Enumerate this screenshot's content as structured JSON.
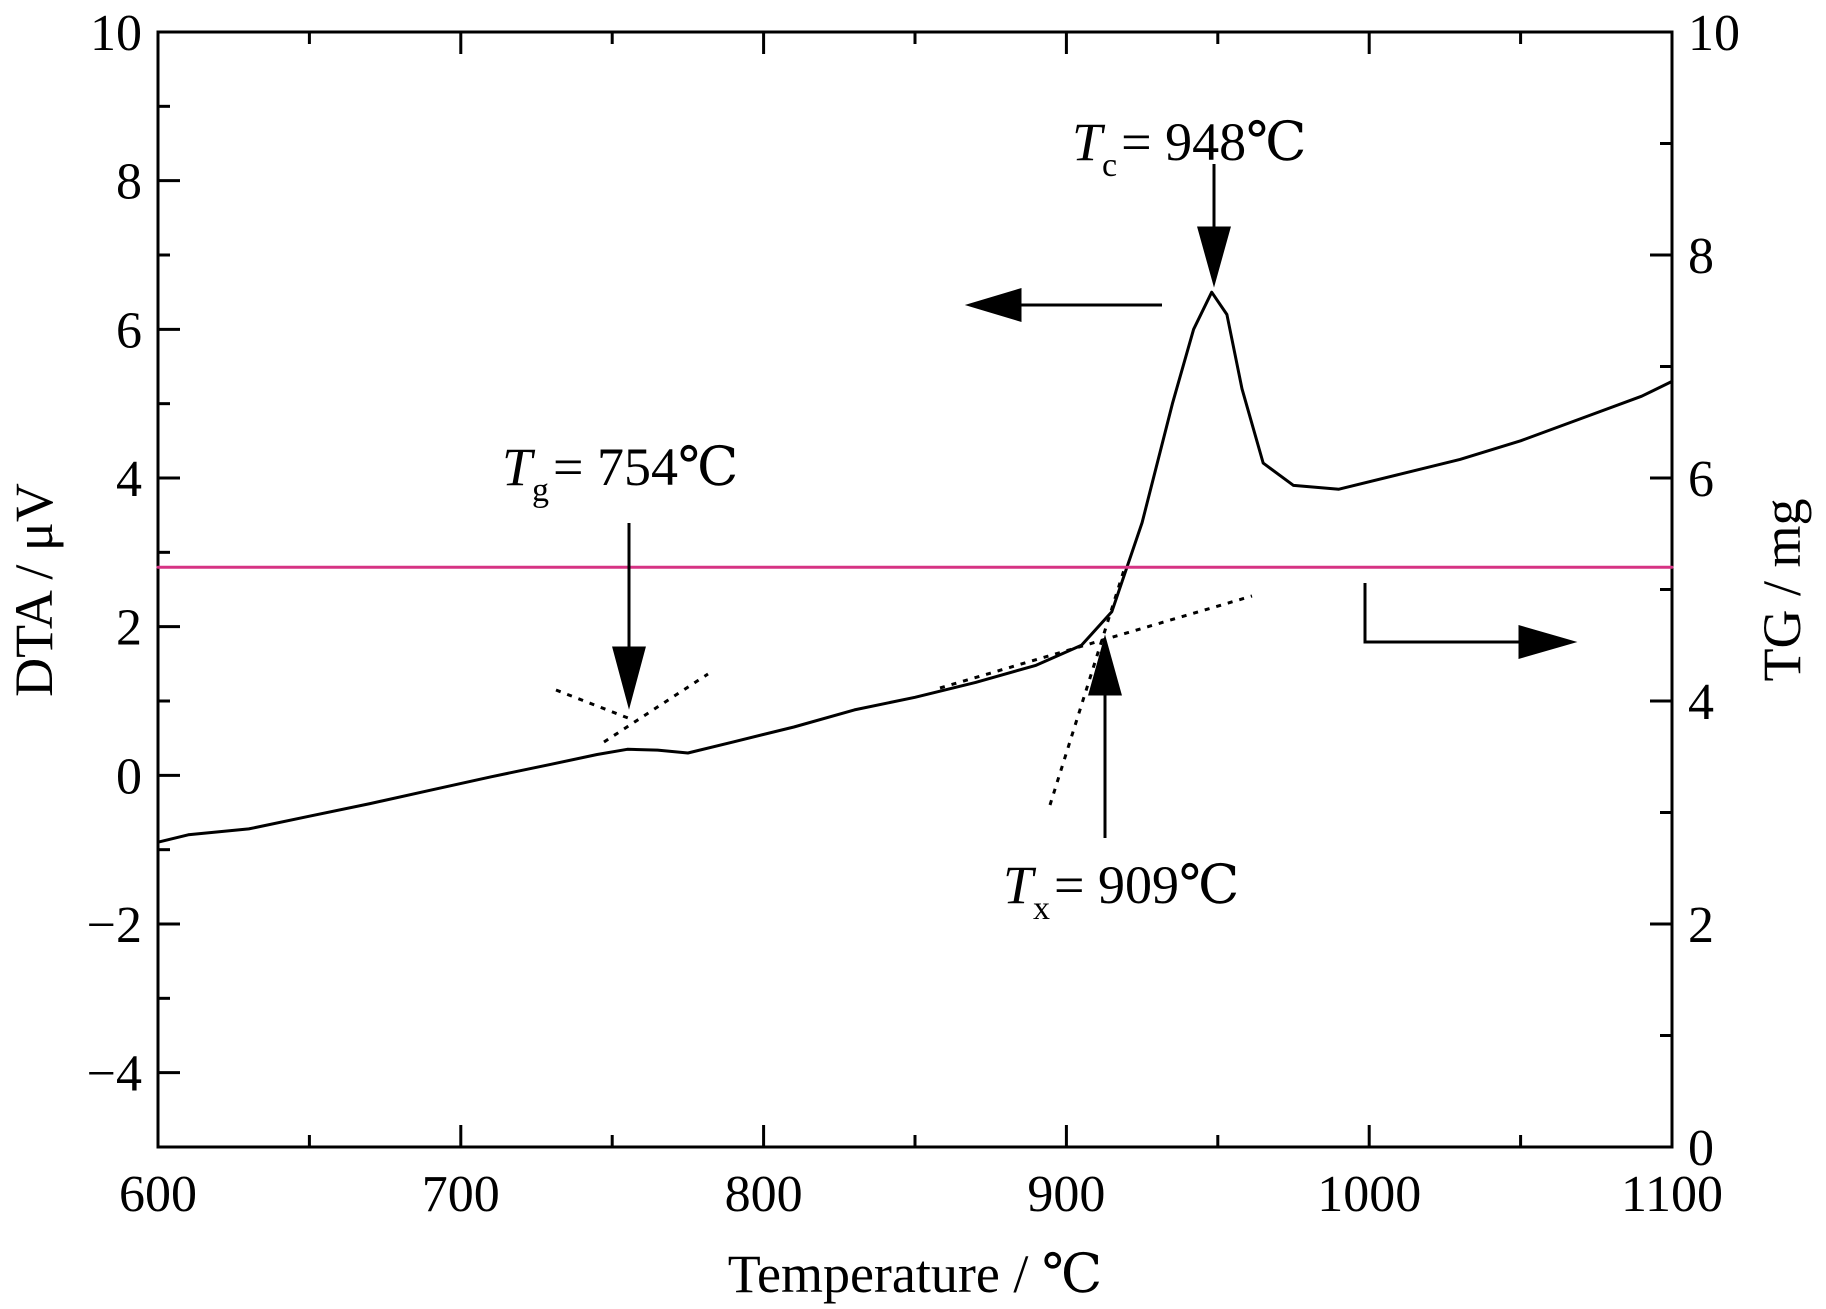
{
  "chart_data": {
    "type": "line",
    "title": "",
    "xlabel": "Temperature / ℃",
    "ylabel_left": "DTA / μV",
    "ylabel_right": "TG / mg",
    "xlim": [
      600,
      1100
    ],
    "ylim_left": [
      -5,
      10
    ],
    "ylim_right": [
      0,
      10
    ],
    "x_ticks": [
      "600",
      "700",
      "800",
      "900",
      "1000",
      "1100"
    ],
    "y_left_ticks": [
      "−4",
      "−2",
      "0",
      "2",
      "4",
      "6",
      "8",
      "10"
    ],
    "y_right_ticks": [
      "0",
      "2",
      "4",
      "6",
      "8",
      "10"
    ],
    "grid": false,
    "series": [
      {
        "axis": "left",
        "color": "#000000",
        "x": [
          600,
          610,
          630,
          650,
          670,
          690,
          710,
          730,
          745,
          755,
          765,
          775,
          790,
          810,
          830,
          850,
          870,
          890,
          905,
          915,
          925,
          935,
          942,
          948,
          953,
          958,
          965,
          975,
          990,
          1010,
          1030,
          1050,
          1070,
          1090,
          1100
        ],
        "y": [
          -0.9,
          -0.8,
          -0.72,
          -0.55,
          -0.38,
          -0.2,
          -0.02,
          0.15,
          0.28,
          0.35,
          0.34,
          0.3,
          0.45,
          0.65,
          0.88,
          1.05,
          1.25,
          1.48,
          1.75,
          2.2,
          3.4,
          5.0,
          6.0,
          6.5,
          6.2,
          5.2,
          4.2,
          3.9,
          3.85,
          4.05,
          4.25,
          4.5,
          4.8,
          5.1,
          5.3
        ]
      },
      {
        "axis": "right",
        "color": "#d63384",
        "x": [
          600,
          1100
        ],
        "y": [
          5.2,
          5.2
        ]
      }
    ],
    "annotations": [
      {
        "var": "T",
        "sub": "g",
        "rest": "= 754℃"
      },
      {
        "var": "T",
        "sub": "x",
        "rest": "= 909℃"
      },
      {
        "var": "T",
        "sub": "c",
        "rest": "= 948℃"
      }
    ]
  }
}
